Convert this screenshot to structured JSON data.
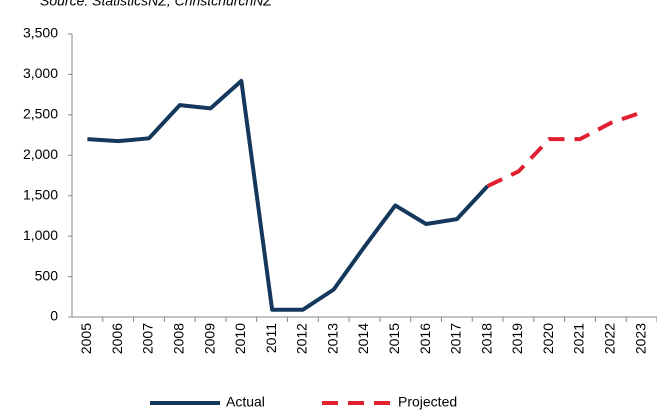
{
  "chart_data": {
    "type": "line",
    "title": "Source: StatisticsNZ, ChristchurchNZ",
    "categories": [
      "2005",
      "2006",
      "2007",
      "2008",
      "2009",
      "2010",
      "2011",
      "2012",
      "2013",
      "2014",
      "2015",
      "2016",
      "2017",
      "2018",
      "2019",
      "2020",
      "2021",
      "2022",
      "2023"
    ],
    "series": [
      {
        "name": "Actual",
        "color": "#14385c",
        "dashed": false,
        "values": [
          2200,
          2175,
          2210,
          2620,
          2580,
          2920,
          90,
          90,
          340,
          870,
          1380,
          1150,
          1210,
          1620,
          null,
          null,
          null,
          null,
          null
        ]
      },
      {
        "name": "Projected",
        "color": "#e0202f",
        "dashed": true,
        "values": [
          null,
          null,
          null,
          null,
          null,
          null,
          null,
          null,
          null,
          null,
          null,
          null,
          null,
          1620,
          1800,
          2200,
          2200,
          2400,
          2530
        ]
      }
    ],
    "ylim": [
      0,
      3500
    ],
    "yticks": [
      0,
      500,
      {
        "value": 1000,
        "label": "1,000"
      },
      {
        "value": 1500,
        "label": "1,500"
      },
      {
        "value": 2000,
        "label": "2,000"
      },
      {
        "value": 2500,
        "label": "2,500"
      },
      {
        "value": 3000,
        "label": "3,000"
      },
      {
        "value": 3500,
        "label": "3,500"
      }
    ],
    "grid": false,
    "legend": "bottom"
  }
}
